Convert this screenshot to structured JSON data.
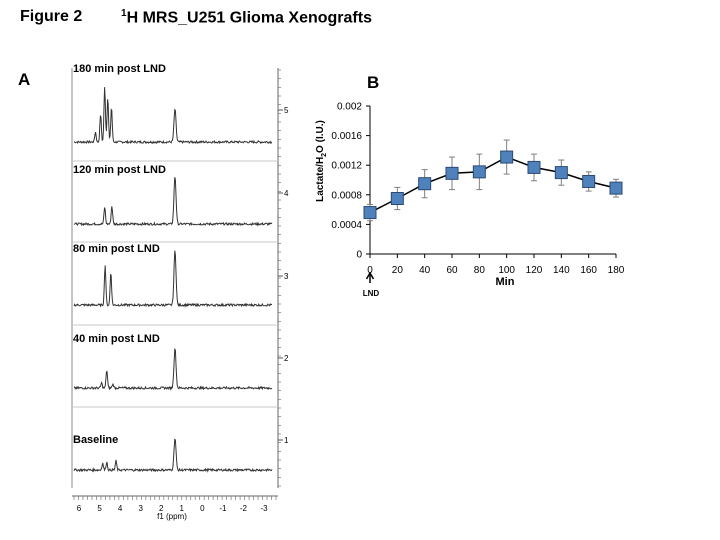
{
  "figure": {
    "label": "Figure 2",
    "title_sup": "1",
    "title_rest": "H MRS_U251 Glioma Xenografts"
  },
  "chart_data": [
    {
      "panel": "A",
      "type": "line",
      "xlabel": "f1 (ppm)",
      "x_ticks": [
        "6",
        "5",
        "4",
        "3",
        "2",
        "1",
        "0",
        "-1",
        "-2",
        "-3"
      ],
      "xlim": [
        6.3,
        -3.3
      ],
      "stack_tick_labels": [
        "1",
        "2",
        "3",
        "4",
        "5"
      ],
      "grid": false,
      "series": [
        {
          "name": "180 min post LND",
          "peaks": [
            {
              "ppm": 4.95,
              "amp": 28
            },
            {
              "ppm": 4.75,
              "amp": 55
            },
            {
              "ppm": 4.6,
              "amp": 45
            },
            {
              "ppm": 4.42,
              "amp": 35
            },
            {
              "ppm": 5.2,
              "amp": 10
            },
            {
              "ppm": 1.33,
              "amp": 33
            }
          ]
        },
        {
          "name": "120 min post LND",
          "peaks": [
            {
              "ppm": 4.75,
              "amp": 17
            },
            {
              "ppm": 4.4,
              "amp": 18
            },
            {
              "ppm": 1.33,
              "amp": 48
            }
          ]
        },
        {
          "name": "80 min post LND",
          "peaks": [
            {
              "ppm": 4.73,
              "amp": 40
            },
            {
              "ppm": 4.45,
              "amp": 33
            },
            {
              "ppm": 1.33,
              "amp": 55
            }
          ]
        },
        {
          "name": "40 min post LND",
          "peaks": [
            {
              "ppm": 4.9,
              "amp": 5
            },
            {
              "ppm": 4.65,
              "amp": 18
            },
            {
              "ppm": 4.35,
              "amp": 4
            },
            {
              "ppm": 1.33,
              "amp": 40
            }
          ]
        },
        {
          "name": "Baseline",
          "peaks": [
            {
              "ppm": 4.85,
              "amp": 7
            },
            {
              "ppm": 4.65,
              "amp": 8
            },
            {
              "ppm": 4.2,
              "amp": 9
            },
            {
              "ppm": 1.33,
              "amp": 32
            }
          ]
        }
      ]
    },
    {
      "panel": "B",
      "type": "line",
      "xlabel": "Min",
      "ylabel_parts": [
        "Lactate/H",
        "2",
        "O (I.U.)"
      ],
      "x_annotation": "LND",
      "x": [
        0,
        20,
        40,
        60,
        80,
        100,
        120,
        140,
        160,
        180
      ],
      "y": [
        0.00056,
        0.00075,
        0.00095,
        0.00109,
        0.00111,
        0.00131,
        0.00117,
        0.0011,
        0.00098,
        0.00089
      ],
      "y_err": [
        0.00011,
        0.00015,
        0.00019,
        0.00022,
        0.00024,
        0.00023,
        0.00018,
        0.00017,
        0.00013,
        0.00012
      ],
      "xlim": [
        0,
        180
      ],
      "ylim": [
        0,
        0.002
      ],
      "x_ticks": [
        "0",
        "20",
        "40",
        "60",
        "80",
        "100",
        "120",
        "140",
        "160",
        "180"
      ],
      "y_ticks": [
        "0",
        "0.0004",
        "0.0008",
        "0.0012",
        "0.0016",
        "0.002"
      ],
      "grid": false,
      "marker": "square",
      "marker_color": "#4f81bd",
      "line_color": "#000000",
      "error_bar_color": "#7f7f7f"
    }
  ]
}
